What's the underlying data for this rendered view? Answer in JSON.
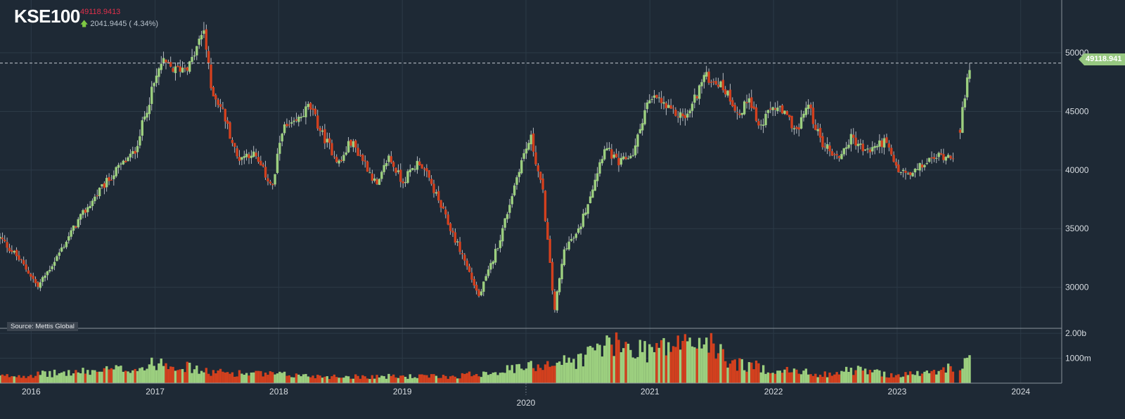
{
  "header": {
    "ticker": "KSE100",
    "last_price": "49118.9413",
    "change": "2041.9445 ( 4.34%)"
  },
  "source_label": "Source: Mettis Global",
  "price_marker": "49118.941",
  "colors": {
    "up": "#9ccf7f",
    "down": "#d2401e",
    "background": "#1e2935",
    "grid": "#2c3a47"
  },
  "chart_data": [
    {
      "type": "candlestick",
      "title": "",
      "y_ticks": [
        30000,
        35000,
        40000,
        45000,
        50000
      ],
      "ylim": [
        26500,
        54500
      ],
      "x_ticks": [
        "2016",
        "2017",
        "2018",
        "2019",
        "2020",
        "2021",
        "2022",
        "2023",
        "2024"
      ],
      "x_range": [
        "2015-10-01",
        "2024-05-01"
      ],
      "last_value": 49118.9413,
      "reference_line": 49118.9413,
      "series_path": [
        [
          "2015-10-01",
          34200
        ],
        [
          "2015-11-15",
          32800
        ],
        [
          "2016-01-01",
          31000
        ],
        [
          "2016-01-20",
          30000
        ],
        [
          "2016-03-15",
          32500
        ],
        [
          "2016-05-15",
          35500
        ],
        [
          "2016-07-15",
          38000
        ],
        [
          "2016-09-15",
          40200
        ],
        [
          "2016-11-01",
          41500
        ],
        [
          "2016-12-20",
          46500
        ],
        [
          "2017-01-20",
          49200
        ],
        [
          "2017-03-01",
          48500
        ],
        [
          "2017-04-15",
          49000
        ],
        [
          "2017-05-25",
          52000
        ],
        [
          "2017-06-15",
          47000
        ],
        [
          "2017-07-20",
          45000
        ],
        [
          "2017-09-01",
          41000
        ],
        [
          "2017-10-15",
          41500
        ],
        [
          "2017-12-15",
          38500
        ],
        [
          "2018-01-10",
          43500
        ],
        [
          "2018-02-15",
          43800
        ],
        [
          "2018-04-01",
          45500
        ],
        [
          "2018-05-10",
          43000
        ],
        [
          "2018-07-01",
          40500
        ],
        [
          "2018-08-01",
          42500
        ],
        [
          "2018-09-15",
          40500
        ],
        [
          "2018-10-20",
          38500
        ],
        [
          "2018-11-20",
          41200
        ],
        [
          "2019-01-01",
          39000
        ],
        [
          "2019-02-20",
          40800
        ],
        [
          "2019-04-01",
          38500
        ],
        [
          "2019-05-15",
          35500
        ],
        [
          "2019-07-01",
          32500
        ],
        [
          "2019-08-15",
          29200
        ],
        [
          "2019-09-15",
          31500
        ],
        [
          "2019-10-20",
          34500
        ],
        [
          "2019-12-15",
          40500
        ],
        [
          "2020-01-15",
          42800
        ],
        [
          "2020-02-20",
          38000
        ],
        [
          "2020-03-25",
          28000
        ],
        [
          "2020-04-25",
          33500
        ],
        [
          "2020-06-01",
          34500
        ],
        [
          "2020-07-15",
          38500
        ],
        [
          "2020-08-20",
          42000
        ],
        [
          "2020-10-01",
          40500
        ],
        [
          "2020-11-15",
          41500
        ],
        [
          "2020-12-20",
          45500
        ],
        [
          "2021-01-20",
          46200
        ],
        [
          "2021-03-01",
          45000
        ],
        [
          "2021-04-20",
          44500
        ],
        [
          "2021-06-10",
          48000
        ],
        [
          "2021-07-20",
          47500
        ],
        [
          "2021-08-20",
          46500
        ],
        [
          "2021-09-25",
          44500
        ],
        [
          "2021-10-20",
          46500
        ],
        [
          "2021-11-20",
          43500
        ],
        [
          "2022-01-01",
          45500
        ],
        [
          "2022-02-10",
          44500
        ],
        [
          "2022-03-15",
          43200
        ],
        [
          "2022-04-10",
          45800
        ],
        [
          "2022-05-20",
          42500
        ],
        [
          "2022-07-10",
          41000
        ],
        [
          "2022-08-20",
          42800
        ],
        [
          "2022-10-01",
          41500
        ],
        [
          "2022-11-25",
          42500
        ],
        [
          "2023-01-01",
          40000
        ],
        [
          "2023-02-10",
          39500
        ],
        [
          "2023-03-20",
          40500
        ],
        [
          "2023-05-01",
          41200
        ],
        [
          "2023-06-15",
          41300
        ],
        [
          "2023-07-01",
          41000
        ],
        [
          "2023-07-08",
          44500
        ],
        [
          "2023-07-20",
          46000
        ],
        [
          "2023-08-04",
          49118.9413
        ]
      ]
    },
    {
      "type": "bar",
      "title": "",
      "y_ticks_labels": [
        "1000m",
        "2.00b"
      ],
      "y_ticks": [
        1.0,
        2.0
      ],
      "ylim": [
        0,
        2.2
      ],
      "unit": "billion shares",
      "volume_path": [
        [
          "2015-10-01",
          0.3
        ],
        [
          "2016-06-01",
          0.5
        ],
        [
          "2016-12-01",
          0.7
        ],
        [
          "2017-01-20",
          1.0
        ],
        [
          "2017-06-01",
          0.5
        ],
        [
          "2018-06-01",
          0.3
        ],
        [
          "2019-06-01",
          0.3
        ],
        [
          "2020-01-01",
          0.7
        ],
        [
          "2020-03-01",
          0.9
        ],
        [
          "2020-06-01",
          1.0
        ],
        [
          "2020-08-15",
          1.7
        ],
        [
          "2021-01-01",
          1.5
        ],
        [
          "2021-06-10",
          1.9
        ],
        [
          "2021-09-01",
          0.9
        ],
        [
          "2022-01-01",
          0.6
        ],
        [
          "2022-06-01",
          0.4
        ],
        [
          "2022-09-01",
          0.6
        ],
        [
          "2023-01-01",
          0.35
        ],
        [
          "2023-05-01",
          0.5
        ],
        [
          "2023-08-04",
          1.0
        ]
      ]
    }
  ]
}
